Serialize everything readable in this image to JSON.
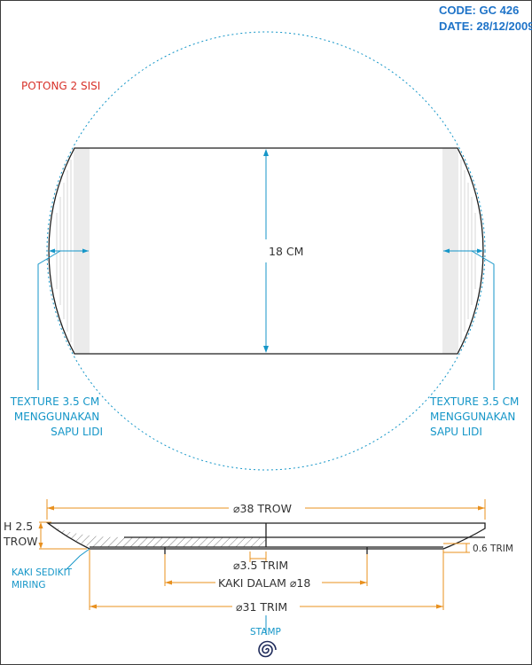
{
  "header": {
    "code": "CODE: GC 426",
    "date": "DATE: 28/12/2009"
  },
  "top_view": {
    "cut_note": "POTONG 2 SISI",
    "height_label": "18 CM",
    "texture_left": [
      "TEXTURE 3.5 CM",
      "MENGGUNAKAN",
      "SAPU LIDI"
    ],
    "texture_right": [
      "TEXTURE 3.5 CM",
      "MENGGUNAKAN",
      "SAPU LIDI"
    ]
  },
  "section_view": {
    "diameter_top": "⌀38 TROW",
    "height_line1": "H 2.5",
    "height_line2": "TROW",
    "foot_thickness": "0.6 TRIM",
    "foot_step": "⌀3.5 TRIM",
    "foot_inner": "KAKI DALAM ⌀18",
    "foot_outer": "⌀31 TRIM",
    "foot_note": [
      "KAKI SEDIKIT",
      "MIRING"
    ]
  },
  "stamp": {
    "label": "STAMP"
  },
  "colors": {
    "header_blue": "#1e73c8",
    "dimension_blue": "#1596c8",
    "dimension_orange": "#e8901e",
    "note_red": "#d8322a",
    "outline": "#1f1f1f"
  }
}
